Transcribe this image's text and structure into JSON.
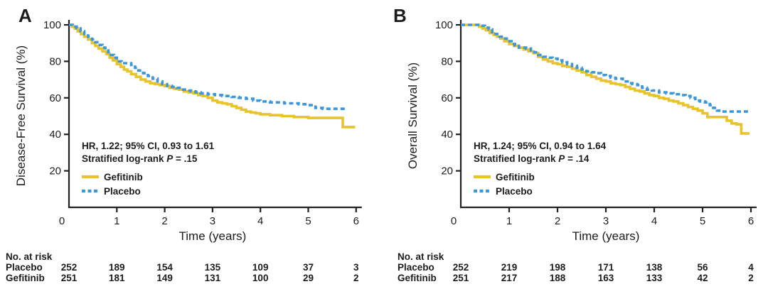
{
  "figure_name": "kaplan-meier-survival-figure",
  "colors": {
    "gefitinib": "#E8C32A",
    "placebo": "#3E97DB",
    "axis": "#231F20",
    "text": "#1C1C1C",
    "background": "#FFFFFF"
  },
  "chart_data": [
    {
      "type": "line",
      "panel_label": "A",
      "xlabel": "Time (years)",
      "ylabel": "Disease-Free Survival (%)",
      "xlim": [
        0,
        6
      ],
      "ylim": [
        0,
        100
      ],
      "x_ticks": [
        "0",
        "1",
        "2",
        "3",
        "4",
        "5",
        "6"
      ],
      "y_ticks": [
        "20",
        "40",
        "60",
        "80",
        "100"
      ],
      "grid": false,
      "legend_position": "lower-left-inside",
      "stats": {
        "hr_line": "HR, 1.22; 95% CI, 0.93 to 1.61",
        "logrank_prefix": "Stratified log-rank ",
        "p_symbol": "P",
        "p_rest": " = .15"
      },
      "series": [
        {
          "name": "Gefitinib",
          "color": "#E8C32A",
          "dash": "",
          "points": [
            [
              0,
              100
            ],
            [
              0.06,
              99
            ],
            [
              0.12,
              98
            ],
            [
              0.18,
              96.5
            ],
            [
              0.25,
              95
            ],
            [
              0.32,
              93.5
            ],
            [
              0.4,
              92
            ],
            [
              0.48,
              90
            ],
            [
              0.55,
              88.5
            ],
            [
              0.62,
              87
            ],
            [
              0.7,
              85.5
            ],
            [
              0.78,
              84
            ],
            [
              0.85,
              82
            ],
            [
              0.92,
              80.5
            ],
            [
              1.0,
              78.5
            ],
            [
              1.08,
              77
            ],
            [
              1.15,
              75.5
            ],
            [
              1.22,
              74.5
            ],
            [
              1.3,
              73
            ],
            [
              1.4,
              71.5
            ],
            [
              1.5,
              70
            ],
            [
              1.6,
              69
            ],
            [
              1.7,
              68
            ],
            [
              1.8,
              67.5
            ],
            [
              1.9,
              67
            ],
            [
              2.0,
              66.5
            ],
            [
              2.1,
              65.5
            ],
            [
              2.2,
              65
            ],
            [
              2.3,
              64.5
            ],
            [
              2.4,
              63.5
            ],
            [
              2.5,
              63
            ],
            [
              2.6,
              62.5
            ],
            [
              2.7,
              61.5
            ],
            [
              2.8,
              61
            ],
            [
              2.9,
              60
            ],
            [
              3.0,
              58.5
            ],
            [
              3.1,
              57.5
            ],
            [
              3.2,
              57
            ],
            [
              3.3,
              56.5
            ],
            [
              3.4,
              55.5
            ],
            [
              3.5,
              54.5
            ],
            [
              3.6,
              53.5
            ],
            [
              3.7,
              52.5
            ],
            [
              3.8,
              52
            ],
            [
              3.9,
              51.5
            ],
            [
              4.0,
              51
            ],
            [
              4.2,
              50.5
            ],
            [
              4.45,
              50
            ],
            [
              4.7,
              49.5
            ],
            [
              5.0,
              49
            ],
            [
              5.72,
              44
            ],
            [
              5.98,
              44
            ]
          ]
        },
        {
          "name": "Placebo",
          "color": "#3E97DB",
          "dash": "6,4",
          "points": [
            [
              0,
              100
            ],
            [
              0.08,
              99
            ],
            [
              0.16,
              98
            ],
            [
              0.24,
              96.5
            ],
            [
              0.32,
              95
            ],
            [
              0.4,
              93.5
            ],
            [
              0.48,
              92
            ],
            [
              0.55,
              90.5
            ],
            [
              0.62,
              89
            ],
            [
              0.7,
              87.5
            ],
            [
              0.76,
              86
            ],
            [
              0.82,
              85
            ],
            [
              0.88,
              83.5
            ],
            [
              0.94,
              82
            ],
            [
              1.0,
              80
            ],
            [
              1.1,
              79
            ],
            [
              1.3,
              78
            ],
            [
              1.38,
              76.5
            ],
            [
              1.45,
              75
            ],
            [
              1.55,
              73.5
            ],
            [
              1.65,
              72
            ],
            [
              1.75,
              70.5
            ],
            [
              1.85,
              69
            ],
            [
              1.95,
              67.5
            ],
            [
              2.05,
              66.5
            ],
            [
              2.15,
              66
            ],
            [
              2.25,
              65.5
            ],
            [
              2.35,
              64.5
            ],
            [
              2.45,
              64
            ],
            [
              2.55,
              63.5
            ],
            [
              2.65,
              63
            ],
            [
              2.75,
              62.5
            ],
            [
              2.9,
              62
            ],
            [
              3.05,
              61.5
            ],
            [
              3.2,
              61
            ],
            [
              3.4,
              60.5
            ],
            [
              3.55,
              60
            ],
            [
              3.7,
              59.5
            ],
            [
              3.85,
              58.5
            ],
            [
              4.0,
              58
            ],
            [
              4.2,
              57.5
            ],
            [
              4.5,
              57
            ],
            [
              4.8,
              56.5
            ],
            [
              5.0,
              56
            ],
            [
              5.15,
              54.5
            ],
            [
              5.3,
              54
            ],
            [
              5.77,
              54
            ]
          ]
        }
      ],
      "at_risk": {
        "title": "No. at risk",
        "rows": [
          {
            "name": "Placebo",
            "counts": [
              "252",
              "189",
              "154",
              "135",
              "109",
              "37",
              "3"
            ]
          },
          {
            "name": "Gefitinib",
            "counts": [
              "251",
              "181",
              "149",
              "131",
              "100",
              "29",
              "2"
            ]
          }
        ]
      }
    },
    {
      "type": "line",
      "panel_label": "B",
      "xlabel": "Time (years)",
      "ylabel": "Overall Survival (%)",
      "xlim": [
        0,
        6
      ],
      "ylim": [
        0,
        100
      ],
      "x_ticks": [
        "0",
        "1",
        "2",
        "3",
        "4",
        "5",
        "6"
      ],
      "y_ticks": [
        "20",
        "40",
        "60",
        "80",
        "100"
      ],
      "grid": false,
      "legend_position": "lower-left-inside",
      "stats": {
        "hr_line": "HR, 1.24; 95% CI, 0.94 to 1.64",
        "logrank_prefix": "Stratified log-rank ",
        "p_symbol": "P",
        "p_rest": " = .14"
      },
      "series": [
        {
          "name": "Gefitinib",
          "color": "#E8C32A",
          "dash": "",
          "points": [
            [
              0,
              100
            ],
            [
              0.3,
              100
            ],
            [
              0.38,
              99
            ],
            [
              0.45,
              98
            ],
            [
              0.52,
              97
            ],
            [
              0.6,
              95.5
            ],
            [
              0.68,
              94.5
            ],
            [
              0.75,
              93.5
            ],
            [
              0.82,
              92.5
            ],
            [
              0.9,
              91
            ],
            [
              1.0,
              89.5
            ],
            [
              1.1,
              88.5
            ],
            [
              1.2,
              87.5
            ],
            [
              1.3,
              86.5
            ],
            [
              1.4,
              85.5
            ],
            [
              1.5,
              84.5
            ],
            [
              1.6,
              82.5
            ],
            [
              1.7,
              81
            ],
            [
              1.8,
              80
            ],
            [
              1.9,
              79
            ],
            [
              2.0,
              78.5
            ],
            [
              2.1,
              77.5
            ],
            [
              2.2,
              77
            ],
            [
              2.3,
              76
            ],
            [
              2.4,
              75
            ],
            [
              2.5,
              74
            ],
            [
              2.6,
              72.5
            ],
            [
              2.7,
              71.5
            ],
            [
              2.8,
              70.5
            ],
            [
              2.9,
              69.5
            ],
            [
              3.0,
              69
            ],
            [
              3.1,
              68
            ],
            [
              3.2,
              67.5
            ],
            [
              3.3,
              67
            ],
            [
              3.4,
              66
            ],
            [
              3.5,
              65
            ],
            [
              3.6,
              64
            ],
            [
              3.7,
              63.5
            ],
            [
              3.8,
              62.5
            ],
            [
              3.9,
              61.5
            ],
            [
              4.0,
              61
            ],
            [
              4.1,
              60
            ],
            [
              4.2,
              59.5
            ],
            [
              4.3,
              58.5
            ],
            [
              4.4,
              58
            ],
            [
              4.5,
              57
            ],
            [
              4.6,
              56
            ],
            [
              4.7,
              55
            ],
            [
              4.8,
              54
            ],
            [
              4.9,
              53
            ],
            [
              5.0,
              51.5
            ],
            [
              5.1,
              49.5
            ],
            [
              5.5,
              47.5
            ],
            [
              5.6,
              46
            ],
            [
              5.7,
              45.5
            ],
            [
              5.8,
              40.5
            ],
            [
              5.97,
              40.5
            ]
          ]
        },
        {
          "name": "Placebo",
          "color": "#3E97DB",
          "dash": "6,4",
          "points": [
            [
              0,
              100
            ],
            [
              0.35,
              100
            ],
            [
              0.42,
              99.5
            ],
            [
              0.5,
              98.5
            ],
            [
              0.58,
              97.5
            ],
            [
              0.65,
              96
            ],
            [
              0.72,
              95
            ],
            [
              0.8,
              93.5
            ],
            [
              0.88,
              92.5
            ],
            [
              0.95,
              91
            ],
            [
              1.05,
              89.5
            ],
            [
              1.12,
              88.5
            ],
            [
              1.2,
              87.5
            ],
            [
              1.35,
              87
            ],
            [
              1.45,
              86
            ],
            [
              1.52,
              85
            ],
            [
              1.6,
              83.5
            ],
            [
              1.7,
              82.5
            ],
            [
              1.8,
              82
            ],
            [
              1.9,
              81.5
            ],
            [
              2.0,
              80.5
            ],
            [
              2.1,
              79.5
            ],
            [
              2.2,
              78.5
            ],
            [
              2.3,
              77.5
            ],
            [
              2.4,
              76.5
            ],
            [
              2.5,
              75.5
            ],
            [
              2.6,
              74.5
            ],
            [
              2.7,
              74
            ],
            [
              2.8,
              73.5
            ],
            [
              2.9,
              72.5
            ],
            [
              3.0,
              72
            ],
            [
              3.1,
              71
            ],
            [
              3.2,
              70.5
            ],
            [
              3.35,
              69
            ],
            [
              3.45,
              68
            ],
            [
              3.55,
              67.5
            ],
            [
              3.65,
              67
            ],
            [
              3.75,
              65.5
            ],
            [
              3.85,
              64.5
            ],
            [
              3.95,
              64
            ],
            [
              4.1,
              63
            ],
            [
              4.25,
              62.5
            ],
            [
              4.4,
              62
            ],
            [
              4.55,
              61.5
            ],
            [
              4.65,
              61
            ],
            [
              4.75,
              60
            ],
            [
              4.85,
              58.5
            ],
            [
              4.95,
              58
            ],
            [
              5.05,
              57.5
            ],
            [
              5.15,
              56
            ],
            [
              5.22,
              54.5
            ],
            [
              5.3,
              53
            ],
            [
              5.4,
              52.5
            ],
            [
              6.0,
              52.5
            ]
          ]
        }
      ],
      "at_risk": {
        "title": "No. at risk",
        "rows": [
          {
            "name": "Placebo",
            "counts": [
              "252",
              "219",
              "198",
              "171",
              "138",
              "56",
              "4"
            ]
          },
          {
            "name": "Gefitinib",
            "counts": [
              "251",
              "217",
              "188",
              "163",
              "133",
              "42",
              "2"
            ]
          }
        ]
      }
    }
  ]
}
